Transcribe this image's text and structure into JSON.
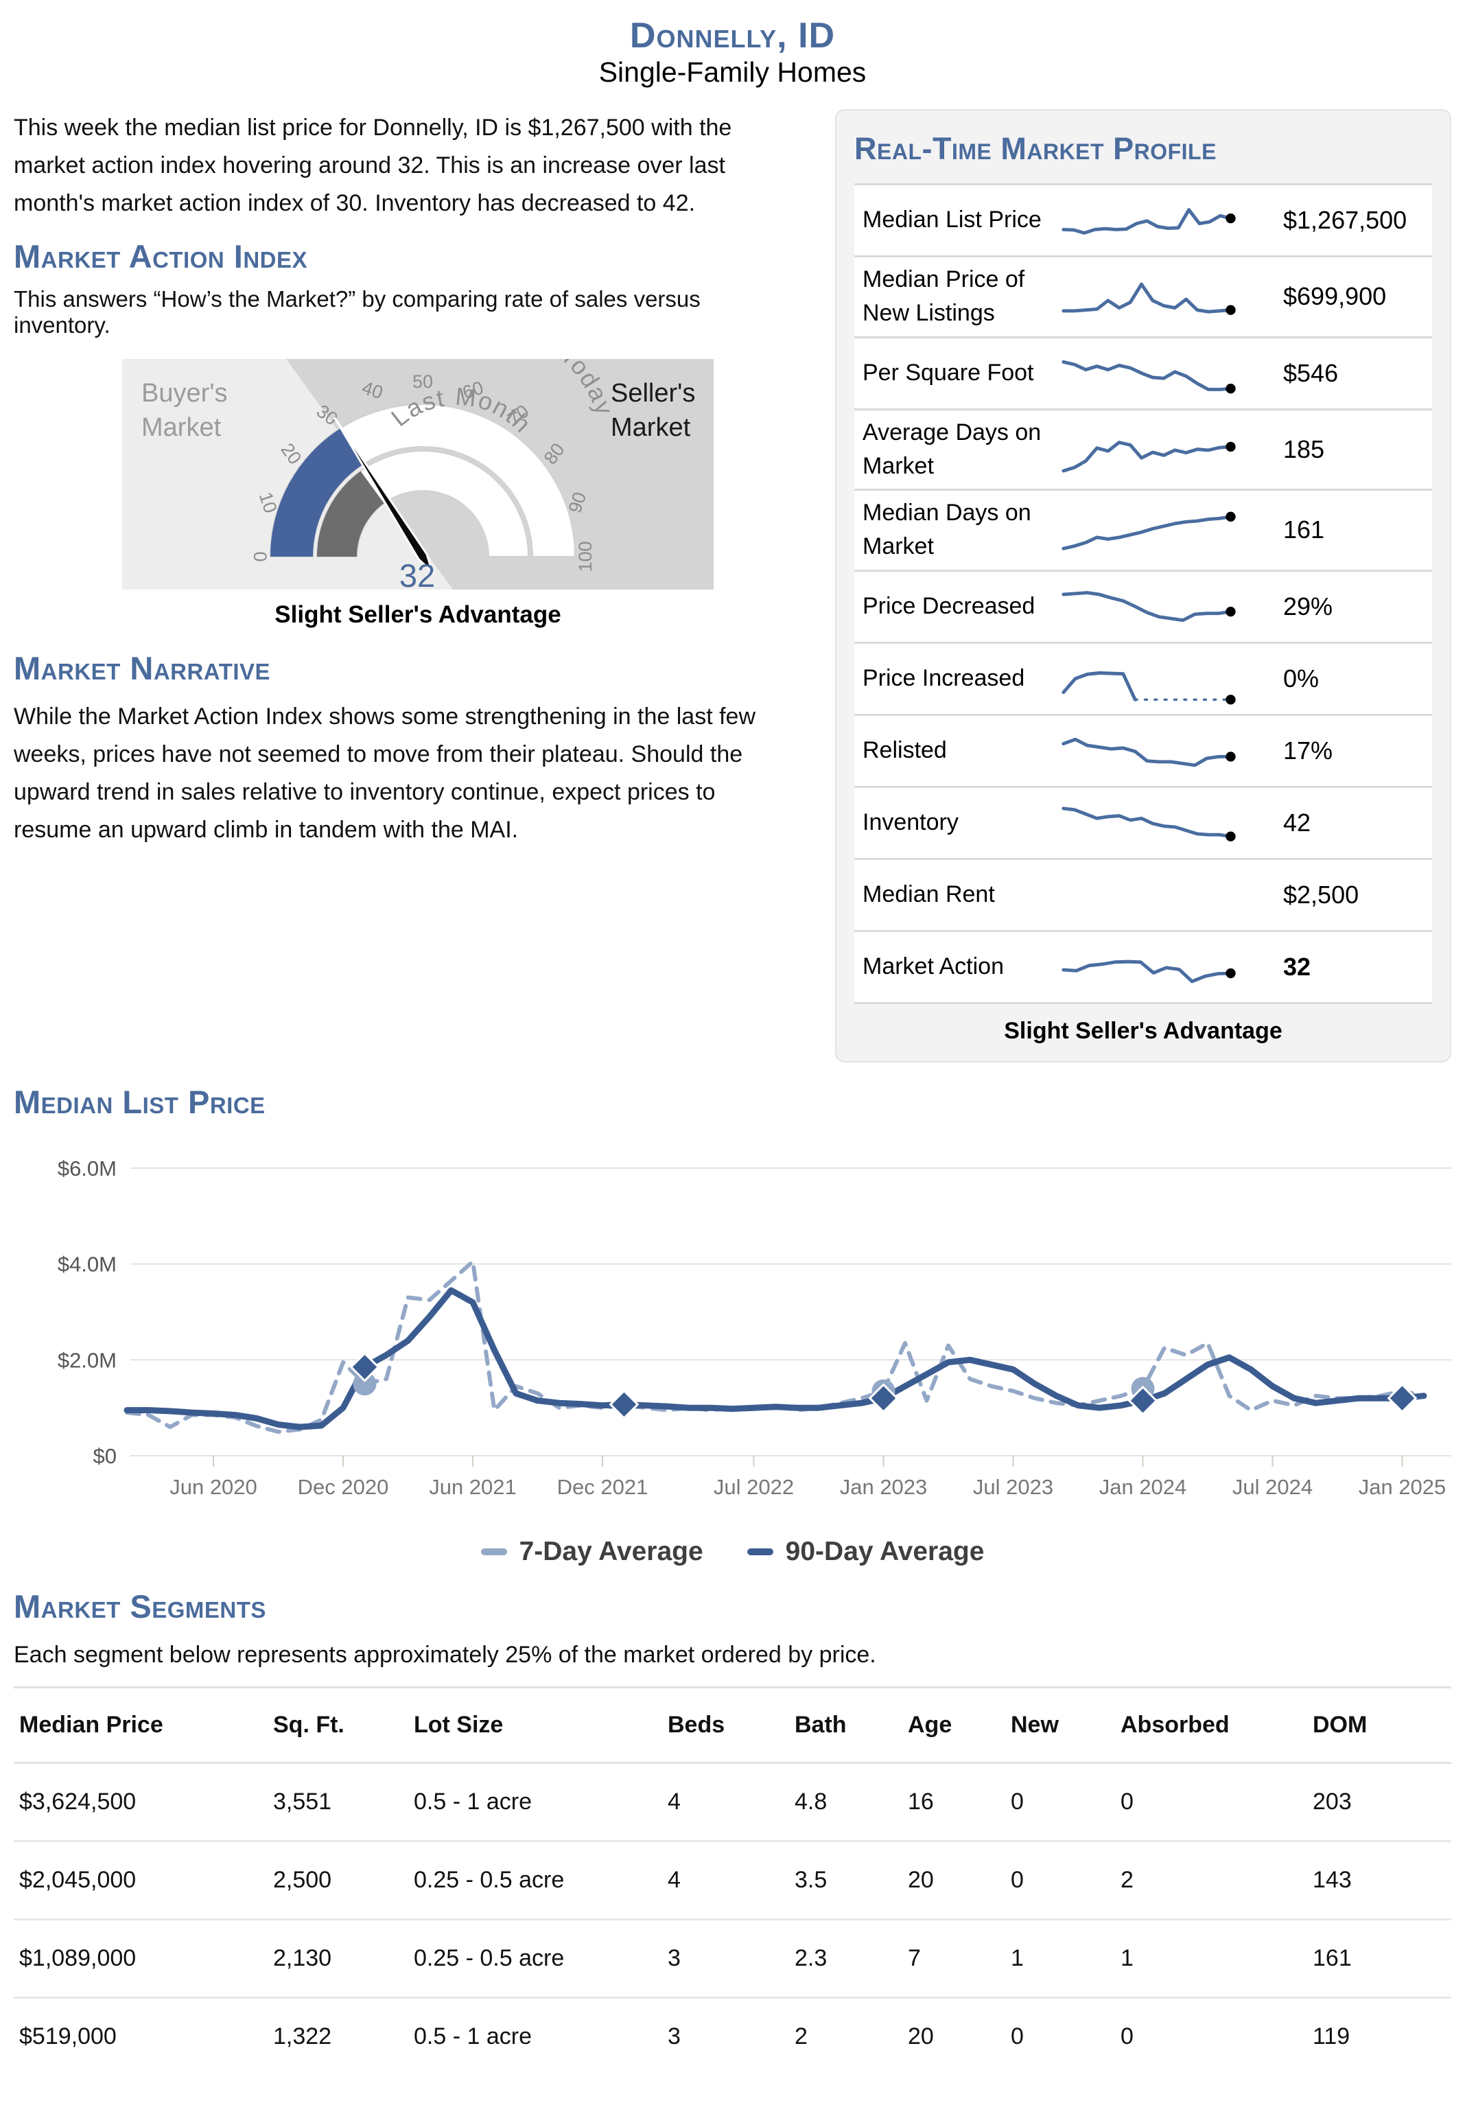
{
  "header": {
    "title": "Donnelly, ID",
    "subtitle": "Single-Family Homes"
  },
  "intro": "This week the median list price for Donnelly, ID is $1,267,500 with the market action index hovering around 32. This is an increase over last month's market action index of 30. Inventory has decreased to 42.",
  "sections": {
    "market_action_index": {
      "title": "Market Action Index",
      "subtitle": "This answers “How’s the Market?” by comparing rate of sales versus inventory."
    },
    "market_narrative": {
      "title": "Market Narrative",
      "body": "While the Market Action Index shows some strengthening in the last few weeks, prices have not seemed to move from their plateau. Should the upward trend in sales relative to inventory continue, expect prices to resume an upward climb in tandem with the MAI."
    },
    "median_list_price": {
      "title": "Median List Price"
    },
    "market_segments": {
      "title": "Market Segments",
      "subtitle": "Each segment below represents approximately 25% of the market ordered by price."
    }
  },
  "gauge": {
    "value": 32,
    "value_label": "32",
    "last_month_value": 30,
    "caption": "Slight Seller's Advantage",
    "left_label_line1": "Buyer's",
    "left_label_line2": "Market",
    "right_label_line1": "Seller's",
    "right_label_line2": "Market",
    "inner_ring_label": "Last Month",
    "outer_ring_label": "Today",
    "ticks": [
      0,
      10,
      20,
      30,
      40,
      50,
      60,
      70,
      80,
      90,
      100
    ],
    "colors": {
      "blue": "#46639c",
      "gray": "#6d6d6d",
      "bg_left": "#ededed",
      "bg_right": "#d4d4d4",
      "tick_text": "#8c8c8c",
      "ring_text": "#909090",
      "needle": "#0a0a0a",
      "value_text": "#4a6b9c"
    }
  },
  "profile": {
    "title": "Real-Time Market Profile",
    "caption": "Slight Seller's Advantage",
    "spark_color": "#4a6da0",
    "rows": [
      {
        "label": "Median List Price",
        "value": "$1,267,500",
        "bold": false,
        "spark": [
          30,
          29,
          22,
          30,
          32,
          30,
          31,
          44,
          50,
          37,
          33,
          34,
          76,
          44,
          48,
          62,
          56
        ]
      },
      {
        "label": "Median Price of New Listings",
        "value": "$699,900",
        "bold": false,
        "spark": [
          18,
          18,
          20,
          22,
          42,
          25,
          38,
          80,
          42,
          30,
          25,
          45,
          20,
          16,
          18,
          20
        ]
      },
      {
        "label": "Per Square Foot",
        "value": "$546",
        "bold": false,
        "spark": [
          78,
          72,
          60,
          68,
          60,
          70,
          64,
          52,
          42,
          40,
          55,
          45,
          28,
          14,
          14,
          16
        ]
      },
      {
        "label": "Average Days on Market",
        "value": "185",
        "bold": false,
        "spark": [
          2,
          10,
          25,
          55,
          48,
          68,
          62,
          32,
          45,
          38,
          50,
          44,
          52,
          50,
          56,
          58
        ]
      },
      {
        "label": "Median Days on Market",
        "value": "161",
        "bold": false,
        "spark": [
          8,
          14,
          22,
          34,
          30,
          34,
          40,
          46,
          54,
          60,
          66,
          70,
          72,
          76,
          78,
          82
        ]
      },
      {
        "label": "Price Decreased",
        "value": "29%",
        "bold": false,
        "spark": [
          80,
          82,
          84,
          80,
          72,
          65,
          52,
          38,
          28,
          24,
          20,
          34,
          36,
          36,
          40
        ]
      },
      {
        "label": "Price Increased",
        "value": "0%",
        "bold": false,
        "spark": [
          20,
          52,
          62,
          65,
          64,
          63,
          3
        ],
        "spark_dash": [
          3,
          3,
          3,
          3,
          3,
          3,
          3,
          3
        ]
      },
      {
        "label": "Relisted",
        "value": "17%",
        "bold": false,
        "spark": [
          68,
          78,
          64,
          60,
          56,
          58,
          50,
          28,
          26,
          26,
          22,
          18,
          34,
          38,
          38
        ]
      },
      {
        "label": "Inventory",
        "value": "42",
        "bold": false,
        "spark": [
          85,
          82,
          72,
          62,
          66,
          68,
          58,
          62,
          50,
          44,
          42,
          34,
          26,
          24,
          24,
          20
        ]
      },
      {
        "label": "Median Rent",
        "value": "$2,500",
        "bold": false
      },
      {
        "label": "Market Action",
        "value": "32",
        "bold": true,
        "spark": [
          45,
          43,
          55,
          58,
          63,
          64,
          63,
          38,
          50,
          46,
          18,
          30,
          36,
          37
        ]
      }
    ]
  },
  "chart_data": {
    "type": "line",
    "title": "Median List Price",
    "x_start_month": "Feb 2020",
    "x_months_span": 60,
    "ylim": [
      0,
      6.5
    ],
    "y_unit": "$M",
    "grid": true,
    "legend_position": "bottom-center",
    "y_ticks": [
      {
        "v": 0,
        "label": "$0"
      },
      {
        "v": 2,
        "label": "$2.0M"
      },
      {
        "v": 4,
        "label": "$4.0M"
      },
      {
        "v": 6,
        "label": "$6.0M"
      }
    ],
    "x_ticks": [
      {
        "m": 4,
        "label": "Jun 2020"
      },
      {
        "m": 10,
        "label": "Dec 2020"
      },
      {
        "m": 16,
        "label": "Jun 2021"
      },
      {
        "m": 22,
        "label": "Dec 2021"
      },
      {
        "m": 29,
        "label": "Jul 2022"
      },
      {
        "m": 35,
        "label": "Jan 2023"
      },
      {
        "m": 41,
        "label": "Jul 2023"
      },
      {
        "m": 47,
        "label": "Jan 2024"
      },
      {
        "m": 53,
        "label": "Jul 2024"
      },
      {
        "m": 59,
        "label": "Jan 2025"
      }
    ],
    "series": [
      {
        "name": "7-Day Average",
        "color": "#93a7c7",
        "dashed": true,
        "values": [
          0.9,
          0.85,
          0.6,
          0.85,
          0.85,
          0.8,
          0.62,
          0.5,
          0.55,
          0.75,
          1.95,
          1.5,
          1.6,
          3.3,
          3.25,
          3.65,
          4.05,
          0.95,
          1.45,
          1.3,
          1.0,
          1.05,
          1.0,
          1.05,
          1.0,
          0.95,
          1.0,
          0.95,
          1.0,
          1.0,
          1.05,
          0.95,
          1.0,
          1.1,
          1.2,
          1.35,
          2.35,
          1.15,
          2.3,
          1.6,
          1.45,
          1.35,
          1.2,
          1.1,
          1.05,
          1.15,
          1.25,
          1.4,
          2.25,
          2.1,
          2.35,
          1.25,
          0.95,
          1.15,
          1.05,
          1.25,
          1.2,
          1.2,
          1.25,
          1.35,
          1.25
        ],
        "marker_months": [
          11,
          35,
          47
        ],
        "marker_shape": "circle"
      },
      {
        "name": "90-Day Average",
        "color": "#3b5c90",
        "dashed": false,
        "values": [
          0.95,
          0.95,
          0.93,
          0.9,
          0.88,
          0.85,
          0.78,
          0.65,
          0.6,
          0.63,
          1.0,
          1.85,
          2.1,
          2.4,
          2.9,
          3.45,
          3.2,
          2.2,
          1.3,
          1.15,
          1.1,
          1.08,
          1.05,
          1.07,
          1.05,
          1.03,
          1.0,
          1.0,
          0.98,
          1.0,
          1.02,
          1.0,
          1.0,
          1.05,
          1.1,
          1.2,
          1.45,
          1.7,
          1.95,
          2.0,
          1.9,
          1.8,
          1.5,
          1.25,
          1.05,
          1.0,
          1.05,
          1.15,
          1.3,
          1.6,
          1.9,
          2.05,
          1.8,
          1.45,
          1.2,
          1.1,
          1.15,
          1.2,
          1.2,
          1.2,
          1.25
        ],
        "marker_months": [
          11,
          23,
          35,
          47,
          59
        ],
        "marker_shape": "diamond"
      }
    ]
  },
  "segments": {
    "columns": [
      "Median Price",
      "Sq. Ft.",
      "Lot Size",
      "Beds",
      "Bath",
      "Age",
      "New",
      "Absorbed",
      "DOM"
    ],
    "rows": [
      [
        "$3,624,500",
        "3,551",
        "0.5 - 1 acre",
        "4",
        "4.8",
        "16",
        "0",
        "0",
        "203"
      ],
      [
        "$2,045,000",
        "2,500",
        "0.25 - 0.5 acre",
        "4",
        "3.5",
        "20",
        "0",
        "2",
        "143"
      ],
      [
        "$1,089,000",
        "2,130",
        "0.25 - 0.5 acre",
        "3",
        "2.3",
        "7",
        "1",
        "1",
        "161"
      ],
      [
        "$519,000",
        "1,322",
        "0.5 - 1 acre",
        "3",
        "2",
        "20",
        "0",
        "0",
        "119"
      ]
    ]
  }
}
